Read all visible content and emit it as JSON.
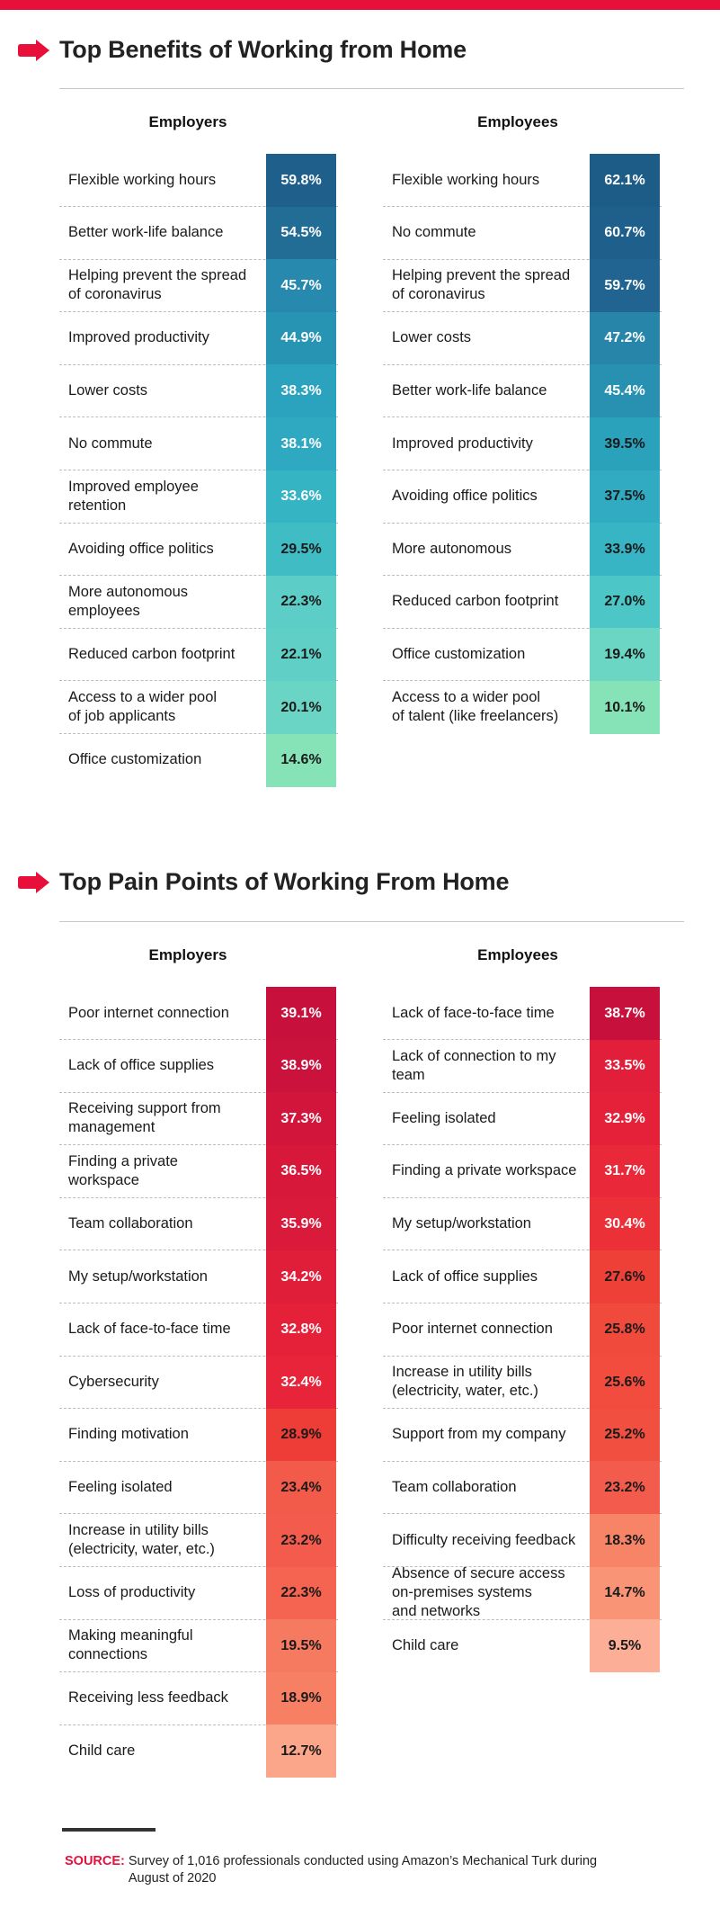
{
  "colors": {
    "accent": "#e8103a"
  },
  "sections": [
    {
      "title": "Top Benefits of Working from Home",
      "icon": "arrow-right-icon",
      "charts": [
        {
          "heading": "Employers",
          "rows": [
            {
              "label": "Flexible working hours",
              "value": "59.8%",
              "color": "#1f5f8b",
              "text": "#ffffff"
            },
            {
              "label": "Better work-life balance",
              "value": "54.5%",
              "color": "#226d96",
              "text": "#ffffff"
            },
            {
              "label": "Helping prevent the spread\nof coronavirus",
              "value": "45.7%",
              "color": "#2689ad",
              "text": "#ffffff"
            },
            {
              "label": "Improved productivity",
              "value": "44.9%",
              "color": "#2894b4",
              "text": "#ffffff"
            },
            {
              "label": "Lower costs",
              "value": "38.3%",
              "color": "#2ba3be",
              "text": "#ffffff"
            },
            {
              "label": "No commute",
              "value": "38.1%",
              "color": "#2ea9c1",
              "text": "#ffffff"
            },
            {
              "label": "Improved employee\nretention",
              "value": "33.6%",
              "color": "#35b4c4",
              "text": "#ffffff"
            },
            {
              "label": "Avoiding office politics",
              "value": "29.5%",
              "color": "#40bcc5",
              "text": "#1a1a1a"
            },
            {
              "label": "More autonomous\nemployees",
              "value": "22.3%",
              "color": "#5ccec7",
              "text": "#1a1a1a"
            },
            {
              "label": "Reduced carbon footprint",
              "value": "22.1%",
              "color": "#60d0c7",
              "text": "#1a1a1a"
            },
            {
              "label": "Access to a wider pool\nof job applicants",
              "value": "20.1%",
              "color": "#6ad5c5",
              "text": "#1a1a1a"
            },
            {
              "label": "Office customization",
              "value": "14.6%",
              "color": "#86e3b8",
              "text": "#1a1a1a"
            }
          ]
        },
        {
          "heading": "Employees",
          "rows": [
            {
              "label": "Flexible working hours",
              "value": "62.1%",
              "color": "#1e5c88",
              "text": "#ffffff"
            },
            {
              "label": "No commute",
              "value": "60.7%",
              "color": "#1f5f8b",
              "text": "#ffffff"
            },
            {
              "label": "Helping prevent the spread\nof coronavirus",
              "value": "59.7%",
              "color": "#216391",
              "text": "#ffffff"
            },
            {
              "label": "Lower costs",
              "value": "47.2%",
              "color": "#2685a9",
              "text": "#ffffff"
            },
            {
              "label": "Better work-life balance",
              "value": "45.4%",
              "color": "#2891b1",
              "text": "#ffffff"
            },
            {
              "label": "Improved productivity",
              "value": "39.5%",
              "color": "#2ba2bc",
              "text": "#1a1a1a"
            },
            {
              "label": "Avoiding office politics",
              "value": "37.5%",
              "color": "#30abc2",
              "text": "#1a1a1a"
            },
            {
              "label": "More autonomous",
              "value": "33.9%",
              "color": "#37b5c4",
              "text": "#1a1a1a"
            },
            {
              "label": "Reduced carbon footprint",
              "value": "27.0%",
              "color": "#4cc6c6",
              "text": "#1a1a1a"
            },
            {
              "label": "Office customization",
              "value": "19.4%",
              "color": "#6cd6c4",
              "text": "#1a1a1a"
            },
            {
              "label": "Access to a wider pool\nof talent (like freelancers)",
              "value": "10.1%",
              "color": "#86e3b8",
              "text": "#1a1a1a"
            }
          ]
        }
      ]
    },
    {
      "title": "Top Pain Points of Working From Home",
      "icon": "arrow-right-icon",
      "charts": [
        {
          "heading": "Employers",
          "rows": [
            {
              "label": "Poor internet connection",
              "value": "39.1%",
              "color": "#c8103c",
              "text": "#ffffff"
            },
            {
              "label": "Lack of office supplies",
              "value": "38.9%",
              "color": "#cb123c",
              "text": "#ffffff"
            },
            {
              "label": "Receiving support from\nmanagement",
              "value": "37.3%",
              "color": "#d2163b",
              "text": "#ffffff"
            },
            {
              "label": "Finding a private\nworkspace",
              "value": "36.5%",
              "color": "#d7183b",
              "text": "#ffffff"
            },
            {
              "label": "Team collaboration",
              "value": "35.9%",
              "color": "#da1a3b",
              "text": "#ffffff"
            },
            {
              "label": "My setup/workstation",
              "value": "34.2%",
              "color": "#e01e3a",
              "text": "#ffffff"
            },
            {
              "label": "Lack of face-to-face time",
              "value": "32.8%",
              "color": "#e5213a",
              "text": "#ffffff"
            },
            {
              "label": "Cybersecurity",
              "value": "32.4%",
              "color": "#e8243a",
              "text": "#ffffff"
            },
            {
              "label": "Finding motivation",
              "value": "28.9%",
              "color": "#ee3c36",
              "text": "#1a1a1a"
            },
            {
              "label": "Feeling isolated",
              "value": "23.4%",
              "color": "#f25a4a",
              "text": "#1a1a1a"
            },
            {
              "label": "Increase in utility bills\n(electricity, water, etc.)",
              "value": "23.2%",
              "color": "#f35c4c",
              "text": "#1a1a1a"
            },
            {
              "label": "Loss of productivity",
              "value": "22.3%",
              "color": "#f46450",
              "text": "#1a1a1a"
            },
            {
              "label": "Making meaningful\nconnections",
              "value": "19.5%",
              "color": "#f67a60",
              "text": "#1a1a1a"
            },
            {
              "label": "Receiving less feedback",
              "value": "18.9%",
              "color": "#f78064",
              "text": "#1a1a1a"
            },
            {
              "label": "Child care",
              "value": "12.7%",
              "color": "#fba58a",
              "text": "#1a1a1a"
            }
          ]
        },
        {
          "heading": "Employees",
          "rows": [
            {
              "label": "Lack of face-to-face time",
              "value": "38.7%",
              "color": "#c8103c",
              "text": "#ffffff"
            },
            {
              "label": "Lack of connection to my\nteam",
              "value": "33.5%",
              "color": "#e21f3a",
              "text": "#ffffff"
            },
            {
              "label": "Feeling isolated",
              "value": "32.9%",
              "color": "#e5213a",
              "text": "#ffffff"
            },
            {
              "label": "Finding a private workspace",
              "value": "31.7%",
              "color": "#e92839",
              "text": "#ffffff"
            },
            {
              "label": "My setup/workstation",
              "value": "30.4%",
              "color": "#ec3038",
              "text": "#ffffff"
            },
            {
              "label": "Lack of office supplies",
              "value": "27.6%",
              "color": "#ef4038",
              "text": "#1a1a1a"
            },
            {
              "label": "Poor internet connection",
              "value": "25.8%",
              "color": "#f04a3c",
              "text": "#1a1a1a"
            },
            {
              "label": "Increase in utility bills\n(electricity, water, etc.)",
              "value": "25.6%",
              "color": "#f14c3e",
              "text": "#1a1a1a"
            },
            {
              "label": "Support from my company",
              "value": "25.2%",
              "color": "#f15040",
              "text": "#1a1a1a"
            },
            {
              "label": "Team collaboration",
              "value": "23.2%",
              "color": "#f35c4c",
              "text": "#1a1a1a"
            },
            {
              "label": "Difficulty receiving feedback",
              "value": "18.3%",
              "color": "#f78466",
              "text": "#1a1a1a"
            },
            {
              "label": "Absence of secure access\non-premises systems\nand networks",
              "value": "14.7%",
              "color": "#f99576",
              "text": "#1a1a1a"
            },
            {
              "label": "Child care",
              "value": "9.5%",
              "color": "#fcaf96",
              "text": "#1a1a1a"
            }
          ]
        }
      ]
    }
  ],
  "source": {
    "label": "SOURCE:",
    "text": "Survey of 1,016 professionals conducted using Amazon’s Mechanical Turk during August of 2020"
  },
  "chart_data": [
    {
      "type": "table",
      "title": "Top Benefits of Working from Home",
      "subtitle": "Employers",
      "categories": [
        "Flexible working hours",
        "Better work-life balance",
        "Helping prevent the spread of coronavirus",
        "Improved productivity",
        "Lower costs",
        "No commute",
        "Improved employee retention",
        "Avoiding office politics",
        "More autonomous employees",
        "Reduced carbon footprint",
        "Access to a wider pool of job applicants",
        "Office customization"
      ],
      "values": [
        59.8,
        54.5,
        45.7,
        44.9,
        38.3,
        38.1,
        33.6,
        29.5,
        22.3,
        22.1,
        20.1,
        14.6
      ]
    },
    {
      "type": "table",
      "title": "Top Benefits of Working from Home",
      "subtitle": "Employees",
      "categories": [
        "Flexible working hours",
        "No commute",
        "Helping prevent the spread of coronavirus",
        "Lower costs",
        "Better work-life balance",
        "Improved productivity",
        "Avoiding office politics",
        "More autonomous",
        "Reduced carbon footprint",
        "Office customization",
        "Access to a wider pool of talent (like freelancers)"
      ],
      "values": [
        62.1,
        60.7,
        59.7,
        47.2,
        45.4,
        39.5,
        37.5,
        33.9,
        27.0,
        19.4,
        10.1
      ]
    },
    {
      "type": "table",
      "title": "Top Pain Points of Working From Home",
      "subtitle": "Employers",
      "categories": [
        "Poor internet connection",
        "Lack of office supplies",
        "Receiving support from management",
        "Finding a private workspace",
        "Team collaboration",
        "My setup/workstation",
        "Lack of face-to-face time",
        "Cybersecurity",
        "Finding motivation",
        "Feeling isolated",
        "Increase in utility bills (electricity, water, etc.)",
        "Loss of productivity",
        "Making meaningful connections",
        "Receiving less feedback",
        "Child care"
      ],
      "values": [
        39.1,
        38.9,
        37.3,
        36.5,
        35.9,
        34.2,
        32.8,
        32.4,
        28.9,
        23.4,
        23.2,
        22.3,
        19.5,
        18.9,
        12.7
      ]
    },
    {
      "type": "table",
      "title": "Top Pain Points of Working From Home",
      "subtitle": "Employees",
      "categories": [
        "Lack of face-to-face time",
        "Lack of connection to my team",
        "Feeling isolated",
        "Finding a private workspace",
        "My setup/workstation",
        "Lack of office supplies",
        "Poor internet connection",
        "Increase in utility bills (electricity, water, etc.)",
        "Support from my company",
        "Team collaboration",
        "Difficulty receiving feedback",
        "Absence of secure access on-premises systems and networks",
        "Child care"
      ],
      "values": [
        38.7,
        33.5,
        32.9,
        31.7,
        30.4,
        27.6,
        25.8,
        25.6,
        25.2,
        23.2,
        18.3,
        14.7,
        9.5
      ]
    }
  ]
}
